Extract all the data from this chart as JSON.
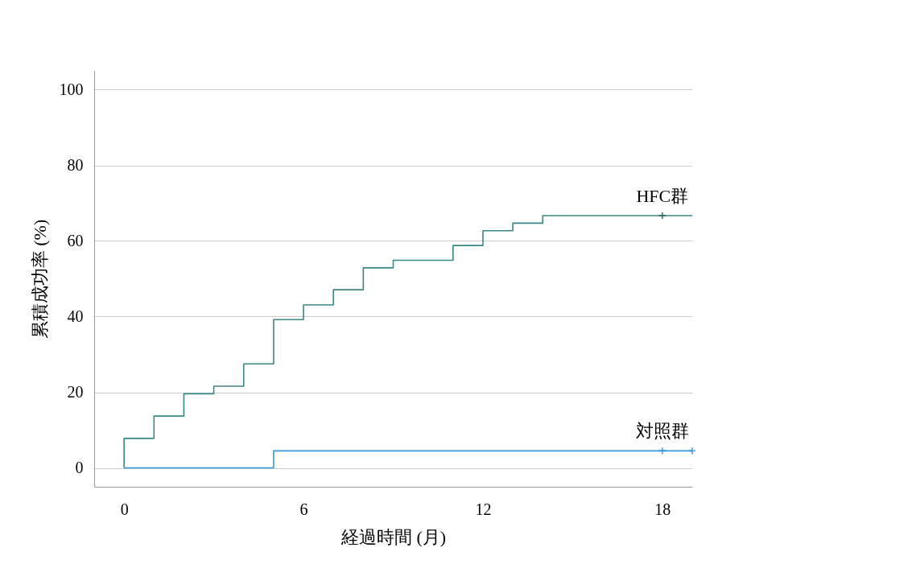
{
  "chart_data": {
    "type": "step",
    "xlabel": "経過時間 (月)",
    "ylabel": "累積成功率 (%)",
    "xlim": [
      -1,
      19
    ],
    "ylim": [
      -5,
      105
    ],
    "xticks": [
      0,
      6,
      12,
      18
    ],
    "yticks": [
      0,
      20,
      40,
      60,
      80,
      100
    ],
    "grid": "y",
    "line_style": "solid",
    "marker": "none",
    "series": [
      {
        "name": "HFC群",
        "color": "#3b8783",
        "x": [
          0,
          0,
          1,
          2,
          3,
          4,
          5,
          6,
          7,
          8,
          9,
          11,
          12,
          13,
          14,
          19
        ],
        "values": [
          0,
          7.8,
          13.7,
          19.6,
          21.6,
          27.5,
          39.2,
          43.1,
          47.1,
          52.9,
          54.9,
          58.8,
          62.7,
          64.7,
          66.7,
          66.7
        ]
      },
      {
        "name": "対照群",
        "color": "#3399e6",
        "x": [
          0,
          5,
          19
        ],
        "values": [
          0,
          4.5,
          4.5
        ]
      },
      {
        "type": "scatter",
        "marker": "cross",
        "color": "#1f5f5b",
        "x": [
          18
        ],
        "values": [
          66.7
        ]
      },
      {
        "type": "scatter",
        "marker": "cross",
        "color": "#2f8fdc",
        "x": [
          18,
          19
        ],
        "values": [
          4.5,
          4.5
        ]
      }
    ]
  }
}
